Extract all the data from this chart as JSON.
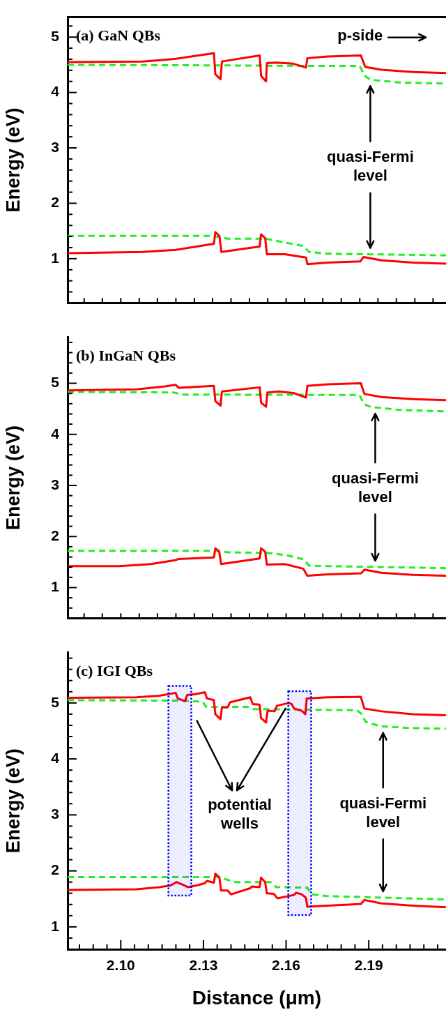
{
  "chart_data": [
    {
      "type": "line",
      "title": "(a) GaN QBs",
      "ylabel": "Energy (eV)",
      "xlim": [
        2.0807,
        2.218
      ],
      "ylim": [
        0.2,
        5.36
      ],
      "tick_labels": "y",
      "legend": false,
      "xticks": [
        {
          "value": 2.0867,
          "label": null
        },
        {
          "value": 2.0933,
          "label": null
        },
        {
          "value": 2.1,
          "label": null
        },
        {
          "value": 2.1067,
          "label": null
        },
        {
          "value": 2.1133,
          "label": null
        },
        {
          "value": 2.12,
          "label": null
        },
        {
          "value": 2.1267,
          "label": null
        },
        {
          "value": 2.1333,
          "label": null
        },
        {
          "value": 2.14,
          "label": null
        },
        {
          "value": 2.1467,
          "label": null
        },
        {
          "value": 2.1533,
          "label": null
        },
        {
          "value": 2.16,
          "label": null
        },
        {
          "value": 2.1667,
          "label": null
        },
        {
          "value": 2.1733,
          "label": null
        },
        {
          "value": 2.18,
          "label": null
        },
        {
          "value": 2.1867,
          "label": null
        },
        {
          "value": 2.1933,
          "label": null
        },
        {
          "value": 2.2,
          "label": null
        },
        {
          "value": 2.2067,
          "label": null
        },
        {
          "value": 2.2133,
          "label": null
        }
      ],
      "yticks": [
        {
          "value": 0.4,
          "label": null
        },
        {
          "value": 0.6,
          "label": null
        },
        {
          "value": 0.8,
          "label": null
        },
        1,
        {
          "value": 1.2,
          "label": null
        },
        {
          "value": 1.4,
          "label": null
        },
        {
          "value": 1.6,
          "label": null
        },
        {
          "value": 1.8,
          "label": null
        },
        2,
        {
          "value": 2.2,
          "label": null
        },
        {
          "value": 2.4,
          "label": null
        },
        {
          "value": 2.6,
          "label": null
        },
        {
          "value": 2.8,
          "label": null
        },
        3,
        {
          "value": 3.2,
          "label": null
        },
        {
          "value": 3.4,
          "label": null
        },
        {
          "value": 3.6,
          "label": null
        },
        {
          "value": 3.8,
          "label": null
        },
        4,
        {
          "value": 4.2,
          "label": null
        },
        {
          "value": 4.4,
          "label": null
        },
        {
          "value": 4.6,
          "label": null
        },
        {
          "value": 4.8,
          "label": null
        },
        5,
        {
          "value": 5.2,
          "label": null
        }
      ],
      "series": [
        {
          "type": "line",
          "color": "#ff0000",
          "line_style": "solid",
          "x": [
            2.0807,
            2.1078,
            2.116,
            2.12,
            2.1338,
            2.1343,
            2.1362,
            2.1367,
            2.1504,
            2.1509,
            2.1527,
            2.153,
            2.1564,
            2.1626,
            2.1672,
            2.1677,
            2.175,
            2.1871,
            2.1887,
            2.1946,
            2.206,
            2.218
          ],
          "values": [
            4.55,
            4.56,
            4.59,
            4.61,
            4.71,
            4.33,
            4.24,
            4.56,
            4.67,
            4.3,
            4.2,
            4.53,
            4.54,
            4.52,
            4.45,
            4.62,
            4.65,
            4.67,
            4.46,
            4.41,
            4.37,
            4.35
          ]
        },
        {
          "type": "line",
          "color": "#22ee22",
          "line_style": "dashed",
          "x": [
            2.0807,
            2.1326,
            2.1677,
            2.1867,
            2.1885,
            2.1906,
            2.201,
            2.218
          ],
          "values": [
            4.5,
            4.49,
            4.48,
            4.48,
            4.3,
            4.23,
            4.18,
            4.16
          ]
        },
        {
          "type": "line",
          "color": "#ff0000",
          "line_style": "solid",
          "x": [
            2.0807,
            2.1078,
            2.12,
            2.1338,
            2.1343,
            2.1358,
            2.1365,
            2.1504,
            2.1509,
            2.1524,
            2.153,
            2.1595,
            2.1672,
            2.1677,
            2.175,
            2.1869,
            2.1881,
            2.1946,
            2.206,
            2.218
          ],
          "values": [
            1.1,
            1.12,
            1.16,
            1.27,
            1.48,
            1.41,
            1.12,
            1.22,
            1.44,
            1.37,
            1.08,
            1.08,
            1.02,
            0.9,
            0.93,
            0.95,
            1.03,
            0.97,
            0.93,
            0.91
          ]
        },
        {
          "type": "line",
          "color": "#22ee22",
          "line_style": "dashed",
          "x": [
            2.0807,
            2.1336,
            2.1388,
            2.1527,
            2.1595,
            2.1662,
            2.1683,
            2.175,
            2.218
          ],
          "values": [
            1.41,
            1.41,
            1.36,
            1.36,
            1.29,
            1.23,
            1.12,
            1.09,
            1.06
          ]
        }
      ],
      "annotations": [
        "quasi-Fermi level",
        "p-side"
      ]
    },
    {
      "type": "line",
      "title": "(b) InGaN QBs",
      "ylabel": "Energy (eV)",
      "xlim": [
        2.0807,
        2.218
      ],
      "ylim": [
        0.4,
        5.9
      ],
      "tick_labels": "y",
      "legend": false,
      "xticks": [
        {
          "value": 2.0867,
          "label": null
        },
        {
          "value": 2.0933,
          "label": null
        },
        {
          "value": 2.1,
          "label": null
        },
        {
          "value": 2.1067,
          "label": null
        },
        {
          "value": 2.1133,
          "label": null
        },
        {
          "value": 2.12,
          "label": null
        },
        {
          "value": 2.1267,
          "label": null
        },
        {
          "value": 2.1333,
          "label": null
        },
        {
          "value": 2.14,
          "label": null
        },
        {
          "value": 2.1467,
          "label": null
        },
        {
          "value": 2.1533,
          "label": null
        },
        {
          "value": 2.16,
          "label": null
        },
        {
          "value": 2.1667,
          "label": null
        },
        {
          "value": 2.1733,
          "label": null
        },
        {
          "value": 2.18,
          "label": null
        },
        {
          "value": 2.1867,
          "label": null
        },
        {
          "value": 2.1933,
          "label": null
        },
        {
          "value": 2.2,
          "label": null
        },
        {
          "value": 2.2067,
          "label": null
        },
        {
          "value": 2.2133,
          "label": null
        }
      ],
      "yticks": [
        {
          "value": 0.6,
          "label": null
        },
        {
          "value": 0.8,
          "label": null
        },
        1,
        {
          "value": 1.2,
          "label": null
        },
        {
          "value": 1.4,
          "label": null
        },
        {
          "value": 1.6,
          "label": null
        },
        {
          "value": 1.8,
          "label": null
        },
        2,
        {
          "value": 2.2,
          "label": null
        },
        {
          "value": 2.4,
          "label": null
        },
        {
          "value": 2.6,
          "label": null
        },
        {
          "value": 2.8,
          "label": null
        },
        3,
        {
          "value": 3.2,
          "label": null
        },
        {
          "value": 3.4,
          "label": null
        },
        {
          "value": 3.6,
          "label": null
        },
        {
          "value": 3.8,
          "label": null
        },
        4,
        {
          "value": 4.2,
          "label": null
        },
        {
          "value": 4.4,
          "label": null
        },
        {
          "value": 4.6,
          "label": null
        },
        {
          "value": 4.8,
          "label": null
        },
        5,
        {
          "value": 5.2,
          "label": null
        },
        {
          "value": 5.4,
          "label": null
        },
        {
          "value": 5.6,
          "label": null
        },
        {
          "value": 5.8,
          "label": null
        }
      ],
      "series": [
        {
          "type": "line",
          "color": "#ff0000",
          "line_style": "solid",
          "x": [
            2.0807,
            2.1057,
            2.116,
            2.1199,
            2.121,
            2.1338,
            2.1343,
            2.1362,
            2.1367,
            2.1504,
            2.1509,
            2.1527,
            2.1532,
            2.1574,
            2.1626,
            2.1672,
            2.1677,
            2.175,
            2.1871,
            2.1884,
            2.1946,
            2.206,
            2.218
          ],
          "values": [
            4.86,
            4.88,
            4.94,
            4.97,
            4.91,
            4.95,
            4.65,
            4.56,
            4.84,
            4.92,
            4.62,
            4.54,
            4.82,
            4.84,
            4.81,
            4.72,
            4.95,
            4.98,
            5.0,
            4.79,
            4.73,
            4.69,
            4.67
          ]
        },
        {
          "type": "line",
          "color": "#22ee22",
          "line_style": "dashed",
          "x": [
            2.0807,
            2.1191,
            2.1222,
            2.1866,
            2.1883,
            2.1905,
            2.2008,
            2.218
          ],
          "values": [
            4.83,
            4.82,
            4.78,
            4.77,
            4.59,
            4.54,
            4.48,
            4.45
          ]
        },
        {
          "type": "line",
          "color": "#ff0000",
          "line_style": "solid",
          "x": [
            2.0807,
            2.0995,
            2.1109,
            2.12,
            2.121,
            2.1338,
            2.1343,
            2.1357,
            2.1364,
            2.1504,
            2.1509,
            2.1524,
            2.153,
            2.1595,
            2.1662,
            2.1677,
            2.175,
            2.1872,
            2.1884,
            2.1946,
            2.206,
            2.218
          ],
          "values": [
            1.42,
            1.42,
            1.46,
            1.54,
            1.56,
            1.59,
            1.77,
            1.71,
            1.46,
            1.57,
            1.77,
            1.7,
            1.45,
            1.46,
            1.37,
            1.23,
            1.26,
            1.28,
            1.35,
            1.29,
            1.25,
            1.23
          ]
        },
        {
          "type": "line",
          "color": "#22ee22",
          "line_style": "dashed",
          "x": [
            2.0807,
            2.1341,
            2.1388,
            2.1532,
            2.1605,
            2.1665,
            2.1683,
            2.175,
            2.218
          ],
          "values": [
            1.72,
            1.72,
            1.69,
            1.68,
            1.63,
            1.55,
            1.43,
            1.42,
            1.38
          ]
        }
      ],
      "annotations": [
        "quasi-Fermi level"
      ]
    },
    {
      "type": "line",
      "title": "(c) IGI QBs",
      "xlabel": "Distance (μm)",
      "ylabel": "Energy (eV)",
      "xlim": [
        2.0807,
        2.218
      ],
      "ylim": [
        0.6,
        5.9
      ],
      "legend": false,
      "xticks": [
        {
          "value": 2.085,
          "label": null
        },
        {
          "value": 2.09,
          "label": null
        },
        {
          "value": 2.095,
          "label": null
        },
        {
          "value": 2.1,
          "label": "2.10"
        },
        {
          "value": 2.105,
          "label": null
        },
        {
          "value": 2.11,
          "label": null
        },
        {
          "value": 2.115,
          "label": null
        },
        {
          "value": 2.12,
          "label": null
        },
        {
          "value": 2.125,
          "label": null
        },
        {
          "value": 2.13,
          "label": "2.13"
        },
        {
          "value": 2.135,
          "label": null
        },
        {
          "value": 2.14,
          "label": null
        },
        {
          "value": 2.145,
          "label": null
        },
        {
          "value": 2.15,
          "label": null
        },
        {
          "value": 2.155,
          "label": null
        },
        {
          "value": 2.16,
          "label": "2.16"
        },
        {
          "value": 2.165,
          "label": null
        },
        {
          "value": 2.17,
          "label": null
        },
        {
          "value": 2.175,
          "label": null
        },
        {
          "value": 2.18,
          "label": null
        },
        {
          "value": 2.185,
          "label": null
        },
        {
          "value": 2.19,
          "label": "2.19"
        },
        {
          "value": 2.195,
          "label": null
        },
        {
          "value": 2.2,
          "label": null
        },
        {
          "value": 2.205,
          "label": null
        },
        {
          "value": 2.21,
          "label": null
        },
        {
          "value": 2.215,
          "label": null
        }
      ],
      "yticks": [
        {
          "value": 0.8,
          "label": null
        },
        1,
        {
          "value": 1.2,
          "label": null
        },
        {
          "value": 1.4,
          "label": null
        },
        {
          "value": 1.6,
          "label": null
        },
        {
          "value": 1.8,
          "label": null
        },
        2,
        {
          "value": 2.2,
          "label": null
        },
        {
          "value": 2.4,
          "label": null
        },
        {
          "value": 2.6,
          "label": null
        },
        {
          "value": 2.8,
          "label": null
        },
        3,
        {
          "value": 3.2,
          "label": null
        },
        {
          "value": 3.4,
          "label": null
        },
        {
          "value": 3.6,
          "label": null
        },
        {
          "value": 3.8,
          "label": null
        },
        4,
        {
          "value": 4.2,
          "label": null
        },
        {
          "value": 4.4,
          "label": null
        },
        {
          "value": 4.6,
          "label": null
        },
        {
          "value": 4.8,
          "label": null
        },
        5,
        {
          "value": 5.2,
          "label": null
        },
        {
          "value": 5.4,
          "label": null
        },
        {
          "value": 5.6,
          "label": null
        },
        {
          "value": 5.8,
          "label": null
        }
      ],
      "series": [
        {
          "type": "line",
          "color": "#ff0000",
          "line_style": "solid",
          "x": [
            2.0807,
            2.1057,
            2.114,
            2.1199,
            2.1207,
            2.1233,
            2.1241,
            2.1274,
            2.1305,
            2.1313,
            2.1338,
            2.1343,
            2.1362,
            2.1367,
            2.1388,
            2.1396,
            2.147,
            2.1479,
            2.1504,
            2.1509,
            2.1527,
            2.1533,
            2.1558,
            2.1567,
            2.161,
            2.162,
            2.1629,
            2.1657,
            2.167,
            2.1675,
            2.175,
            2.1871,
            2.1884,
            2.1946,
            2.206,
            2.218
          ],
          "values": [
            5.09,
            5.1,
            5.13,
            5.18,
            5.08,
            5.03,
            5.14,
            5.16,
            5.19,
            5.08,
            5.05,
            4.8,
            4.71,
            4.92,
            4.92,
            5.01,
            5.1,
            4.98,
            4.97,
            4.73,
            4.65,
            4.86,
            4.85,
            4.95,
            5.0,
            4.98,
            4.9,
            4.86,
            4.8,
            5.08,
            5.1,
            5.11,
            4.9,
            4.85,
            4.8,
            4.78
          ]
        },
        {
          "type": "line",
          "color": "#22ee22",
          "line_style": "dashed",
          "x": [
            2.0807,
            2.1233,
            2.1297,
            2.131,
            2.1388,
            2.146,
            2.1481,
            2.1858,
            2.1874,
            2.1889,
            2.1946,
            2.206,
            2.218
          ],
          "values": [
            5.05,
            5.04,
            5.02,
            4.93,
            4.93,
            4.93,
            4.89,
            4.87,
            4.8,
            4.66,
            4.58,
            4.55,
            4.54
          ]
        },
        {
          "type": "line",
          "color": "#ff0000",
          "line_style": "solid",
          "x": [
            2.0807,
            2.1057,
            2.114,
            2.1181,
            2.1202,
            2.1222,
            2.1243,
            2.1284,
            2.1305,
            2.1313,
            2.1338,
            2.1343,
            2.1358,
            2.1364,
            2.1388,
            2.14,
            2.147,
            2.1476,
            2.1504,
            2.1509,
            2.1524,
            2.153,
            2.1555,
            2.1569,
            2.1629,
            2.1636,
            2.1657,
            2.1672,
            2.1677,
            2.175,
            2.1872,
            2.1884,
            2.1946,
            2.206,
            2.218
          ],
          "values": [
            1.66,
            1.67,
            1.71,
            1.74,
            1.8,
            1.76,
            1.71,
            1.75,
            1.78,
            1.82,
            1.79,
            1.95,
            1.88,
            1.65,
            1.65,
            1.58,
            1.69,
            1.72,
            1.71,
            1.88,
            1.8,
            1.6,
            1.59,
            1.51,
            1.57,
            1.61,
            1.58,
            1.52,
            1.36,
            1.38,
            1.41,
            1.48,
            1.42,
            1.38,
            1.35
          ]
        },
        {
          "type": "line",
          "color": "#22ee22",
          "line_style": "dashed",
          "x": [
            2.0807,
            2.1357,
            2.1388,
            2.1413,
            2.1543,
            2.1564,
            2.1677,
            2.1693,
            2.175,
            2.218
          ],
          "values": [
            1.89,
            1.89,
            1.84,
            1.8,
            1.8,
            1.71,
            1.7,
            1.58,
            1.55,
            1.49
          ]
        }
      ],
      "bands": [
        {
          "axis": "x",
          "from": 2.1173,
          "to": 2.1256,
          "color": "#0000ff"
        },
        {
          "axis": "x",
          "from": 2.1608,
          "to": 2.1691,
          "color": "#0000ff"
        }
      ],
      "annotations": [
        "quasi-Fermi level",
        {
          "text": "potential wells",
          "x": 2.1598,
          "y": 4.9
        }
      ]
    }
  ]
}
